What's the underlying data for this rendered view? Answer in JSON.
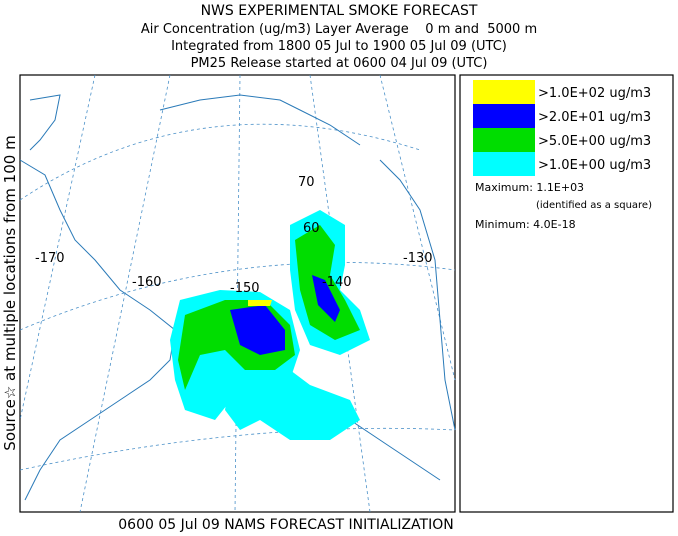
{
  "header": {
    "lines": [
      "NWS EXPERIMENTAL SMOKE FORECAST",
      "Air Concentration (ug/m3) Layer Average    0 m and  5000 m",
      "Integrated from 1800 05 Jul to 1900 05 Jul 09 (UTC)",
      "PM25 Release started at 0600 04 Jul 09 (UTC)"
    ]
  },
  "side_label": "Source☆ at multiple locations from 100 m",
  "footer": "0600 05 Jul 09 NAMS FORECAST INITIALIZATION",
  "legend": {
    "items": [
      {
        "label": ">1.0E+02 ug/m3",
        "color": "#ffff00"
      },
      {
        "label": ">2.0E+01 ug/m3",
        "color": "#0000ff"
      },
      {
        "label": ">5.0E+00 ug/m3",
        "color": "#00dd00"
      },
      {
        "label": ">1.0E+00 ug/m3",
        "color": "#00ffff"
      }
    ],
    "maximum": "Maximum: 1.1E+03",
    "maximum_note": "(identified as a square)",
    "minimum": "Minimum: 4.0E-18"
  },
  "map": {
    "labels": [
      "-170",
      "-160",
      "-150",
      "-140",
      "-130",
      "70",
      "60"
    ]
  }
}
